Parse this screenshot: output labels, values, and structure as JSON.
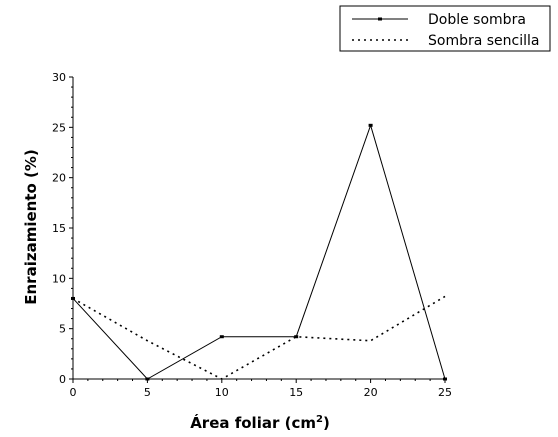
{
  "chart_data": {
    "type": "line",
    "title": "",
    "xlabel": "Área foliar (cm",
    "xlabel_superscript": "2",
    "xlabel_suffix": ")",
    "ylabel": "Enraizamiento (%)",
    "xlim": [
      0,
      25
    ],
    "ylim": [
      0,
      30
    ],
    "xticks": [
      0,
      5,
      10,
      15,
      20,
      25
    ],
    "yticks": [
      0,
      5,
      10,
      15,
      20,
      25,
      30
    ],
    "grid": false,
    "legend_position": "top-right",
    "series": [
      {
        "name": "Doble sombra",
        "style": "solid",
        "color": "#000000",
        "x": [
          0,
          5,
          10,
          15,
          20,
          25
        ],
        "y": [
          8,
          0,
          4.2,
          4.2,
          25.2,
          0
        ]
      },
      {
        "name": "Sombra sencilla",
        "style": "dotted",
        "color": "#000000",
        "x": [
          0,
          5,
          10,
          15,
          20,
          25
        ],
        "y": [
          8,
          3.8,
          0,
          4.2,
          3.8,
          8.2
        ]
      }
    ]
  }
}
